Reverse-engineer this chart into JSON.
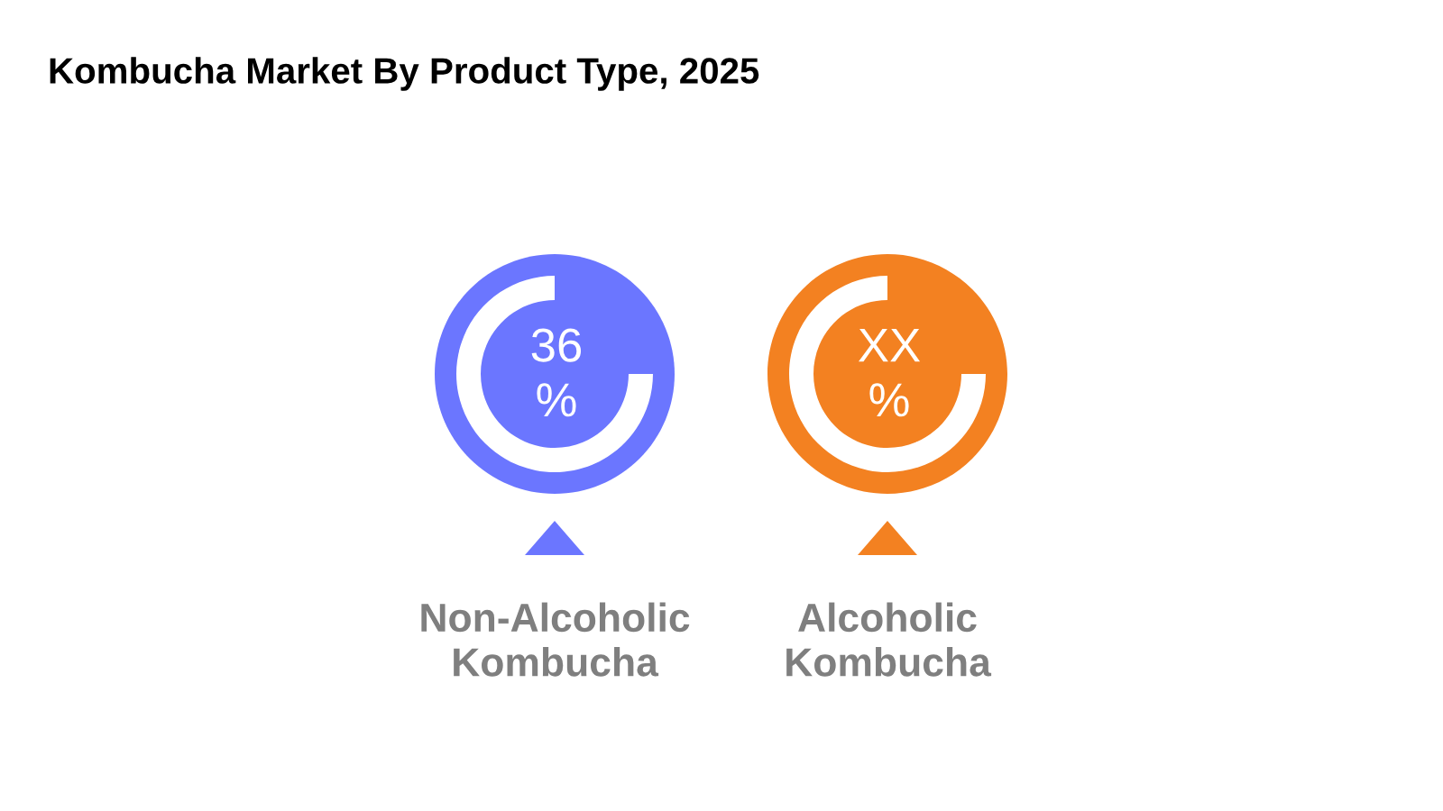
{
  "chart_data": {
    "type": "other",
    "title": "Kombucha Market By Product Type, 2025",
    "categories": [
      "Non-Alcoholic\nKombucha",
      "Alcoholic\nKombucha"
    ],
    "values": [
      36,
      null
    ],
    "value_labels": [
      "36\n%",
      "XX\n%"
    ],
    "colors": [
      "#6b76ff",
      "#f38121"
    ]
  }
}
